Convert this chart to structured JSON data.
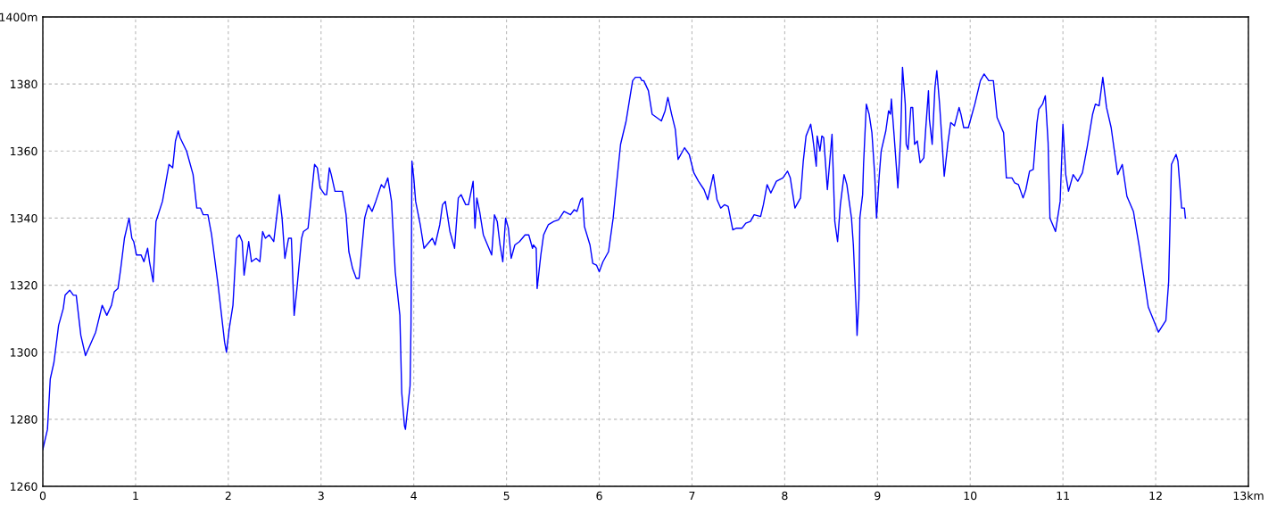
{
  "chart_data": {
    "type": "line",
    "xlim": [
      0,
      13
    ],
    "ylim": [
      1260,
      1400
    ],
    "xticks": [
      0,
      1,
      2,
      3,
      4,
      5,
      6,
      7,
      8,
      9,
      10,
      11,
      12,
      {
        "value": 13,
        "label": "13km"
      }
    ],
    "yticks": [
      1260,
      1280,
      1300,
      1320,
      1340,
      1360,
      1380,
      {
        "value": 1400,
        "label": "1400m"
      }
    ],
    "grid": true,
    "series": [
      {
        "color": "#0000ff",
        "x": [
          0,
          0.05,
          0.08,
          0.12,
          0.17,
          0.22,
          0.24,
          0.29,
          0.33,
          0.36,
          0.41,
          0.46,
          0.57,
          0.64,
          0.69,
          0.74,
          0.77,
          0.81,
          0.84,
          0.88,
          0.93,
          0.96,
          0.98,
          1.01,
          1.06,
          1.09,
          1.13,
          1.15,
          1.19,
          1.22,
          1.29,
          1.36,
          1.4,
          1.43,
          1.46,
          1.48,
          1.55,
          1.62,
          1.66,
          1.7,
          1.73,
          1.78,
          1.82,
          1.89,
          1.96,
          1.98,
          2.01,
          2.05,
          2.09,
          2.12,
          2.15,
          2.17,
          2.22,
          2.25,
          2.3,
          2.34,
          2.37,
          2.4,
          2.44,
          2.49,
          2.55,
          2.58,
          2.61,
          2.65,
          2.68,
          2.71,
          2.74,
          2.79,
          2.81,
          2.86,
          2.89,
          2.93,
          2.96,
          2.99,
          3.04,
          3.06,
          3.09,
          3.11,
          3.15,
          3.2,
          3.23,
          3.27,
          3.3,
          3.34,
          3.38,
          3.41,
          3.47,
          3.51,
          3.55,
          3.59,
          3.65,
          3.68,
          3.72,
          3.76,
          3.8,
          3.85,
          3.87,
          3.9,
          3.91,
          3.96,
          3.97,
          3.98,
          4.0,
          4.02,
          4.07,
          4.11,
          4.2,
          4.23,
          4.28,
          4.31,
          4.34,
          4.39,
          4.44,
          4.48,
          4.51,
          4.56,
          4.59,
          4.64,
          4.66,
          4.68,
          4.71,
          4.75,
          4.84,
          4.87,
          4.9,
          4.93,
          4.96,
          4.99,
          5.02,
          5.05,
          5.09,
          5.14,
          5.2,
          5.24,
          5.28,
          5.29,
          5.32,
          5.33,
          5.37,
          5.4,
          5.45,
          5.51,
          5.56,
          5.62,
          5.69,
          5.73,
          5.76,
          5.8,
          5.82,
          5.84,
          5.9,
          5.93,
          5.97,
          6.0,
          6.04,
          6.1,
          6.15,
          6.18,
          6.23,
          6.29,
          6.36,
          6.39,
          6.44,
          6.46,
          6.48,
          6.53,
          6.57,
          6.62,
          6.67,
          6.71,
          6.74,
          6.78,
          6.82,
          6.85,
          6.92,
          6.97,
          7.02,
          7.07,
          7.13,
          7.17,
          7.23,
          7.27,
          7.31,
          7.35,
          7.39,
          7.44,
          7.48,
          7.54,
          7.58,
          7.63,
          7.67,
          7.74,
          7.77,
          7.81,
          7.85,
          7.91,
          7.98,
          8.03,
          8.06,
          8.11,
          8.17,
          8.2,
          8.23,
          8.28,
          8.3,
          8.34,
          8.35,
          8.38,
          8.4,
          8.42,
          8.46,
          8.51,
          8.54,
          8.57,
          8.6,
          8.64,
          8.67,
          8.72,
          8.74,
          8.77,
          8.78,
          8.8,
          8.81,
          8.84,
          8.85,
          8.88,
          8.91,
          8.94,
          8.97,
          8.99,
          9.02,
          9.04,
          9.09,
          9.12,
          9.14,
          9.15,
          9.18,
          9.22,
          9.25,
          9.27,
          9.3,
          9.31,
          9.33,
          9.36,
          9.38,
          9.4,
          9.43,
          9.46,
          9.5,
          9.52,
          9.55,
          9.56,
          9.59,
          9.62,
          9.64,
          9.67,
          9.72,
          9.76,
          9.79,
          9.83,
          9.88,
          9.9,
          9.93,
          9.98,
          10.05,
          10.11,
          10.15,
          10.2,
          10.25,
          10.29,
          10.36,
          10.39,
          10.45,
          10.48,
          10.52,
          10.57,
          10.6,
          10.64,
          10.68,
          10.72,
          10.74,
          10.78,
          10.81,
          10.84,
          10.86,
          10.92,
          10.97,
          11.0,
          11.03,
          11.06,
          11.11,
          11.16,
          11.21,
          11.26,
          11.32,
          11.35,
          11.39,
          11.43,
          11.47,
          11.52,
          11.59,
          11.64,
          11.69,
          11.76,
          11.82,
          11.88,
          11.92,
          12.03,
          12.11,
          12.14,
          12.17,
          12.22,
          12.24,
          12.28,
          12.31,
          12.32
        ],
        "values": [
          1271,
          1277,
          1292,
          1297,
          1308,
          1313,
          1317,
          1318.5,
          1317,
          1317,
          1305,
          1299,
          1306,
          1314,
          1311,
          1314,
          1318,
          1319,
          1325,
          1334,
          1340,
          1334,
          1333,
          1329,
          1329,
          1327,
          1331,
          1327,
          1321,
          1339,
          1345,
          1356,
          1355,
          1363,
          1366,
          1364,
          1360,
          1353,
          1343,
          1343,
          1341,
          1341,
          1335,
          1320,
          1303,
          1300,
          1307,
          1314,
          1334,
          1335,
          1333,
          1323,
          1333,
          1327,
          1328,
          1327,
          1336,
          1334,
          1335,
          1333,
          1347,
          1340,
          1328,
          1334,
          1334,
          1311,
          1319,
          1334,
          1336,
          1337,
          1345,
          1356,
          1355,
          1349,
          1347,
          1347,
          1355,
          1353,
          1348,
          1348,
          1348,
          1341,
          1330,
          1325,
          1322,
          1322,
          1340,
          1344,
          1342,
          1345,
          1350,
          1349,
          1352,
          1345,
          1324,
          1311,
          1288,
          1278,
          1277,
          1290,
          1308,
          1357,
          1352,
          1345,
          1338,
          1331,
          1334,
          1332,
          1338,
          1344,
          1345,
          1336,
          1331,
          1346,
          1347,
          1344,
          1344,
          1351,
          1337,
          1346,
          1342,
          1335,
          1329,
          1341,
          1339,
          1332,
          1327,
          1340,
          1337,
          1328,
          1332,
          1333,
          1335,
          1335,
          1331,
          1332,
          1331,
          1319,
          1329,
          1335,
          1338,
          1339,
          1339.5,
          1342,
          1341,
          1342.5,
          1342,
          1345.5,
          1346,
          1337.5,
          1332,
          1326.5,
          1326,
          1324,
          1327,
          1330,
          1340,
          1348.5,
          1362,
          1369,
          1381,
          1382,
          1382,
          1381,
          1381,
          1378,
          1371,
          1370,
          1369,
          1372,
          1376,
          1371,
          1366.5,
          1357.5,
          1361,
          1359,
          1353.5,
          1351,
          1348.5,
          1345.5,
          1353,
          1345.5,
          1343,
          1344,
          1343.5,
          1336.5,
          1337,
          1337,
          1338.5,
          1339,
          1341,
          1340.5,
          1344,
          1350,
          1347.5,
          1351,
          1352,
          1354,
          1352,
          1343,
          1346,
          1357,
          1364.5,
          1368,
          1364.5,
          1355.5,
          1364.5,
          1360,
          1364.5,
          1364,
          1348.5,
          1365,
          1339,
          1333,
          1344,
          1353,
          1350,
          1340,
          1332,
          1313,
          1305,
          1316,
          1340,
          1347,
          1356,
          1374,
          1371,
          1365.5,
          1353,
          1340,
          1353,
          1360,
          1366,
          1372,
          1371,
          1375.5,
          1364.5,
          1349,
          1364,
          1385,
          1374,
          1362,
          1360.5,
          1373,
          1373,
          1362,
          1363,
          1356.5,
          1358,
          1366.5,
          1378,
          1369.5,
          1362,
          1379,
          1384,
          1374,
          1352.5,
          1362.5,
          1368.5,
          1367.5,
          1373,
          1371,
          1367,
          1367,
          1374,
          1381,
          1383,
          1381,
          1381,
          1370,
          1365.5,
          1352,
          1352,
          1350.5,
          1350,
          1346,
          1348.5,
          1354,
          1354.5,
          1368.5,
          1372.5,
          1374,
          1376.5,
          1362.5,
          1340,
          1336,
          1345,
          1368,
          1353,
          1348,
          1353,
          1351,
          1353.5,
          1361,
          1371,
          1374,
          1373.5,
          1382,
          1373,
          1367,
          1353,
          1356,
          1346.5,
          1342,
          1332,
          1321,
          1313.5,
          1306,
          1309.5,
          1321,
          1356,
          1359,
          1357,
          1343,
          1343,
          1340
        ]
      }
    ]
  }
}
